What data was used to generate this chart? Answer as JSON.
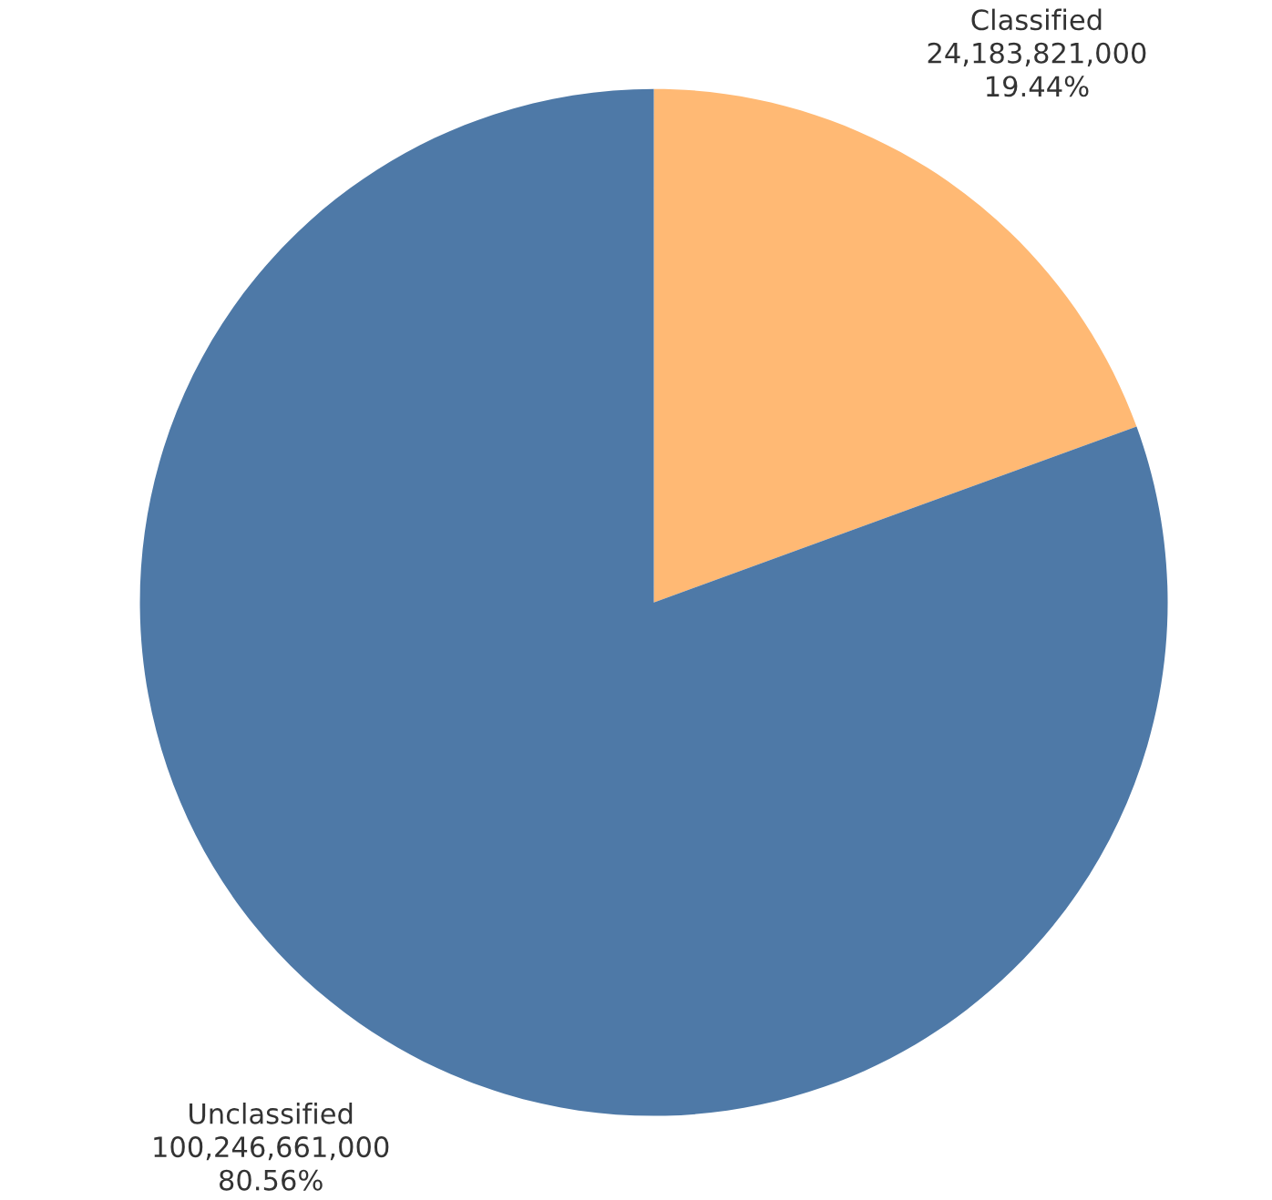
{
  "chart_data": {
    "type": "pie",
    "categories": [
      "Classified",
      "Unclassified"
    ],
    "values": [
      24183821000,
      100246661000
    ],
    "colors": [
      "#ffb974",
      "#4e79a7"
    ],
    "value_labels": [
      "24,183,821,000\n19.44%",
      "100,246,661,000\n80.56%"
    ],
    "legend": false
  }
}
